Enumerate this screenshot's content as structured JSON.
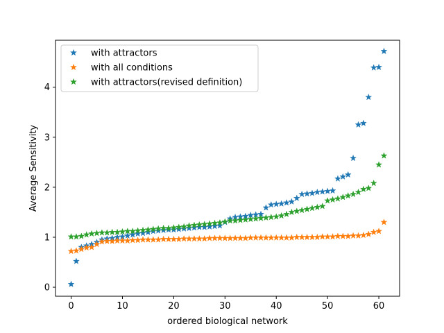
{
  "chart_data": {
    "type": "scatter",
    "xlabel": "ordered biological network",
    "ylabel": "Average Sensitivity",
    "xlim": [
      -3.05,
      64.05
    ],
    "ylim": [
      -0.18,
      4.94
    ],
    "xticks": [
      0,
      10,
      20,
      30,
      40,
      50,
      60
    ],
    "yticks": [
      0,
      1,
      2,
      3,
      4
    ],
    "grid": false,
    "legend_position": "top-left",
    "marker": "star",
    "series": [
      {
        "name": "with attractors",
        "color": "#1f77b4",
        "x": [
          0,
          1,
          2,
          3,
          4,
          5,
          6,
          7,
          8,
          9,
          10,
          11,
          12,
          13,
          14,
          15,
          16,
          17,
          18,
          19,
          20,
          21,
          22,
          23,
          24,
          25,
          26,
          27,
          28,
          29,
          30,
          31,
          32,
          33,
          34,
          35,
          36,
          37,
          38,
          39,
          40,
          41,
          42,
          43,
          44,
          45,
          46,
          47,
          48,
          49,
          50,
          51,
          52,
          53,
          54,
          55,
          56,
          57,
          58,
          59,
          60,
          61
        ],
        "y": [
          0.06,
          0.52,
          0.8,
          0.83,
          0.86,
          0.9,
          0.95,
          0.97,
          0.98,
          1.0,
          1.01,
          1.03,
          1.05,
          1.07,
          1.08,
          1.1,
          1.12,
          1.13,
          1.14,
          1.15,
          1.15,
          1.16,
          1.17,
          1.18,
          1.19,
          1.2,
          1.2,
          1.21,
          1.22,
          1.23,
          1.3,
          1.37,
          1.4,
          1.41,
          1.42,
          1.44,
          1.45,
          1.46,
          1.59,
          1.65,
          1.66,
          1.67,
          1.69,
          1.71,
          1.78,
          1.86,
          1.87,
          1.88,
          1.9,
          1.91,
          1.92,
          1.93,
          2.17,
          2.21,
          2.25,
          2.58,
          3.25,
          3.28,
          3.8,
          4.39,
          4.4,
          4.72
        ]
      },
      {
        "name": "with all conditions",
        "color": "#ff7f0e",
        "x": [
          0,
          1,
          2,
          3,
          4,
          5,
          6,
          7,
          8,
          9,
          10,
          11,
          12,
          13,
          14,
          15,
          16,
          17,
          18,
          19,
          20,
          21,
          22,
          23,
          24,
          25,
          26,
          27,
          28,
          29,
          30,
          31,
          32,
          33,
          34,
          35,
          36,
          37,
          38,
          39,
          40,
          41,
          42,
          43,
          44,
          45,
          46,
          47,
          48,
          49,
          50,
          51,
          52,
          53,
          54,
          55,
          56,
          57,
          58,
          59,
          60,
          61
        ],
        "y": [
          0.72,
          0.73,
          0.76,
          0.79,
          0.8,
          0.86,
          0.91,
          0.92,
          0.92,
          0.93,
          0.93,
          0.93,
          0.94,
          0.94,
          0.95,
          0.95,
          0.95,
          0.95,
          0.96,
          0.96,
          0.96,
          0.96,
          0.97,
          0.97,
          0.97,
          0.97,
          0.97,
          0.98,
          0.98,
          0.98,
          0.98,
          0.98,
          0.98,
          0.98,
          0.98,
          0.99,
          0.99,
          0.99,
          0.99,
          0.99,
          0.99,
          0.99,
          0.99,
          0.99,
          1.0,
          1.0,
          1.0,
          1.0,
          1.0,
          1.01,
          1.01,
          1.01,
          1.02,
          1.02,
          1.02,
          1.03,
          1.03,
          1.04,
          1.06,
          1.1,
          1.12,
          1.3
        ]
      },
      {
        "name": "with attractors(revised definition)",
        "color": "#2ca02c",
        "x": [
          0,
          1,
          2,
          3,
          4,
          5,
          6,
          7,
          8,
          9,
          10,
          11,
          12,
          13,
          14,
          15,
          16,
          17,
          18,
          19,
          20,
          21,
          22,
          23,
          24,
          25,
          26,
          27,
          28,
          29,
          30,
          31,
          32,
          33,
          34,
          35,
          36,
          37,
          38,
          39,
          40,
          41,
          42,
          43,
          44,
          45,
          46,
          47,
          48,
          49,
          50,
          51,
          52,
          53,
          54,
          55,
          56,
          57,
          58,
          59,
          60,
          61
        ],
        "y": [
          1.01,
          1.01,
          1.02,
          1.05,
          1.07,
          1.08,
          1.09,
          1.09,
          1.1,
          1.1,
          1.11,
          1.12,
          1.12,
          1.13,
          1.14,
          1.15,
          1.16,
          1.17,
          1.18,
          1.18,
          1.19,
          1.2,
          1.21,
          1.23,
          1.24,
          1.25,
          1.26,
          1.27,
          1.28,
          1.29,
          1.31,
          1.33,
          1.33,
          1.34,
          1.35,
          1.36,
          1.37,
          1.38,
          1.39,
          1.4,
          1.41,
          1.43,
          1.46,
          1.5,
          1.52,
          1.54,
          1.56,
          1.58,
          1.6,
          1.62,
          1.73,
          1.75,
          1.77,
          1.8,
          1.83,
          1.86,
          1.9,
          1.96,
          1.98,
          2.08,
          2.45,
          2.63
        ]
      }
    ]
  }
}
